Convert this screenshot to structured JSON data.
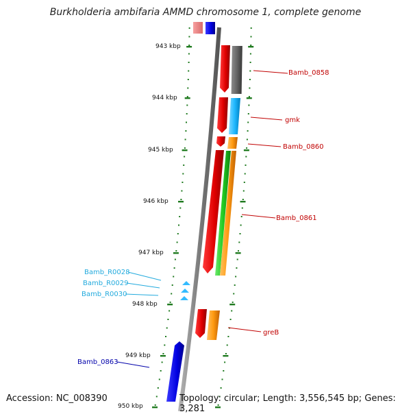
{
  "title": "Burkholderia ambifaria AMMD chromosome 1, complete genome",
  "footer": {
    "accession": "Accession: NC_008390",
    "summary": "Topology: circular; Length: 3,556,545 bp; Genes: 3,281"
  },
  "ticks": [
    "943 kbp",
    "944 kbp",
    "945 kbp",
    "946 kbp",
    "947 kbp",
    "948 kbp",
    "949 kbp",
    "950 kbp"
  ],
  "labels": {
    "Bamb_0858": "Bamb_0858",
    "gmk": "gmk",
    "Bamb_0860": "Bamb_0860",
    "Bamb_0861": "Bamb_0861",
    "greB": "greB",
    "Bamb_R0028": "Bamb_R0028",
    "Bamb_R0029": "Bamb_R0029",
    "Bamb_R0030": "Bamb_R0030",
    "Bamb_0863": "Bamb_0863"
  },
  "colors": {
    "backbone": "#8a8a8a",
    "tick_dots": "#1f7a1f",
    "red_label": "#c00000",
    "cyan_label": "#22aadd",
    "blue_label": "#0000aa"
  }
}
